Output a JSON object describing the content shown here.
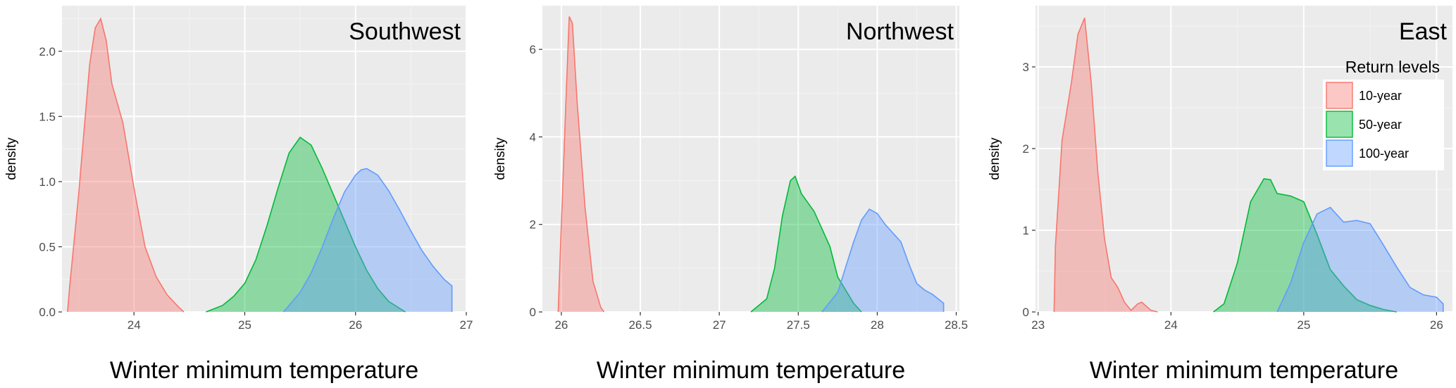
{
  "chart_data": [
    {
      "type": "area",
      "title": "Southwest",
      "xlabel": "Winter minimum temperature",
      "ylabel": "density",
      "xlim": [
        23.35,
        27.0
      ],
      "ylim": [
        0,
        2.35
      ],
      "xticks": [
        24,
        25,
        26,
        27
      ],
      "yticks": [
        0.0,
        0.5,
        1.0,
        1.5,
        2.0
      ],
      "ytick_labels": [
        "0.0",
        "0.5",
        "1.0",
        "1.5",
        "2.0"
      ],
      "grid": true,
      "series": [
        {
          "name": "10-year",
          "color": "#f8766d",
          "x": [
            23.4,
            23.42,
            23.5,
            23.6,
            23.65,
            23.7,
            23.75,
            23.8,
            23.9,
            24.0,
            24.1,
            24.2,
            24.3,
            24.4,
            24.45
          ],
          "y": [
            0.0,
            0.2,
            0.9,
            1.9,
            2.18,
            2.25,
            2.08,
            1.75,
            1.45,
            0.95,
            0.5,
            0.27,
            0.13,
            0.04,
            0.0
          ]
        },
        {
          "name": "50-year",
          "color": "#00ba38",
          "x": [
            24.65,
            24.8,
            24.9,
            25.0,
            25.1,
            25.2,
            25.3,
            25.4,
            25.5,
            25.6,
            25.7,
            25.8,
            25.9,
            26.0,
            26.1,
            26.2,
            26.3,
            26.45
          ],
          "y": [
            0.0,
            0.05,
            0.12,
            0.22,
            0.4,
            0.66,
            0.95,
            1.22,
            1.34,
            1.28,
            1.1,
            0.9,
            0.7,
            0.5,
            0.32,
            0.18,
            0.08,
            0.0
          ]
        },
        {
          "name": "100-year",
          "color": "#619cff",
          "x": [
            25.35,
            25.5,
            25.6,
            25.7,
            25.8,
            25.9,
            26.0,
            26.05,
            26.1,
            26.2,
            26.3,
            26.4,
            26.5,
            26.6,
            26.7,
            26.8,
            26.87,
            26.87
          ],
          "y": [
            0.0,
            0.15,
            0.3,
            0.5,
            0.72,
            0.92,
            1.05,
            1.09,
            1.1,
            1.05,
            0.93,
            0.78,
            0.62,
            0.47,
            0.35,
            0.25,
            0.2,
            0.0
          ]
        }
      ]
    },
    {
      "type": "area",
      "title": "Northwest",
      "xlabel": "Winter minimum temperature",
      "ylabel": "density",
      "xlim": [
        25.88,
        28.52
      ],
      "ylim": [
        0,
        7.0
      ],
      "xticks": [
        26.0,
        26.5,
        27.0,
        27.5,
        28.0,
        28.5
      ],
      "yticks": [
        0,
        2,
        4,
        6
      ],
      "ytick_labels": [
        "0",
        "2",
        "4",
        "6"
      ],
      "grid": true,
      "series": [
        {
          "name": "10-year",
          "color": "#f8766d",
          "x": [
            25.98,
            25.985,
            26.0,
            26.03,
            26.05,
            26.07,
            26.1,
            26.15,
            26.2,
            26.25,
            26.27
          ],
          "y": [
            0.0,
            0.5,
            2.0,
            4.9,
            6.75,
            6.6,
            4.8,
            2.4,
            0.7,
            0.1,
            0.0
          ]
        },
        {
          "name": "50-year",
          "color": "#00ba38",
          "x": [
            27.2,
            27.3,
            27.35,
            27.4,
            27.45,
            27.48,
            27.52,
            27.6,
            27.7,
            27.75,
            27.8,
            27.85,
            27.9
          ],
          "y": [
            0.0,
            0.3,
            1.0,
            2.2,
            3.0,
            3.1,
            2.7,
            2.3,
            1.5,
            0.8,
            0.5,
            0.2,
            0.0
          ]
        },
        {
          "name": "100-year",
          "color": "#619cff",
          "x": [
            27.65,
            27.75,
            27.85,
            27.9,
            27.95,
            28.0,
            28.05,
            28.1,
            28.15,
            28.2,
            28.25,
            28.3,
            28.35,
            28.42,
            28.42
          ],
          "y": [
            0.0,
            0.45,
            1.6,
            2.1,
            2.35,
            2.25,
            2.0,
            1.8,
            1.6,
            1.1,
            0.65,
            0.5,
            0.4,
            0.2,
            0.0
          ]
        }
      ]
    },
    {
      "type": "area",
      "title": "East",
      "xlabel": "Winter minimum temperature",
      "ylabel": "density",
      "xlim": [
        22.98,
        26.12
      ],
      "ylim": [
        0,
        3.75
      ],
      "xticks": [
        23,
        24,
        25,
        26
      ],
      "yticks": [
        0,
        1,
        2,
        3
      ],
      "ytick_labels": [
        "0",
        "1",
        "2",
        "3"
      ],
      "grid": true,
      "legend": {
        "title": "Return levels",
        "position": "top-right",
        "entries": [
          "10-year",
          "50-year",
          "100-year"
        ]
      },
      "series": [
        {
          "name": "10-year",
          "color": "#f8766d",
          "x": [
            23.12,
            23.13,
            23.18,
            23.25,
            23.3,
            23.35,
            23.4,
            23.45,
            23.5,
            23.55,
            23.6,
            23.65,
            23.7,
            23.75,
            23.78,
            23.85,
            23.9
          ],
          "y": [
            0.0,
            0.8,
            2.1,
            2.8,
            3.4,
            3.6,
            2.8,
            1.7,
            0.9,
            0.42,
            0.3,
            0.12,
            0.02,
            0.1,
            0.12,
            0.02,
            0.0
          ]
        },
        {
          "name": "50-year",
          "color": "#00ba38",
          "x": [
            24.32,
            24.4,
            24.5,
            24.6,
            24.7,
            24.75,
            24.8,
            24.9,
            25.0,
            25.1,
            25.2,
            25.3,
            25.4,
            25.5,
            25.6,
            25.7
          ],
          "y": [
            0.0,
            0.1,
            0.6,
            1.35,
            1.63,
            1.62,
            1.45,
            1.42,
            1.35,
            0.95,
            0.52,
            0.32,
            0.15,
            0.08,
            0.03,
            0.0
          ]
        },
        {
          "name": "100-year",
          "color": "#619cff",
          "x": [
            24.8,
            24.9,
            25.0,
            25.1,
            25.2,
            25.3,
            25.4,
            25.5,
            25.6,
            25.7,
            25.8,
            25.9,
            26.0,
            26.05,
            26.05
          ],
          "y": [
            0.0,
            0.35,
            0.85,
            1.2,
            1.28,
            1.1,
            1.12,
            1.08,
            0.82,
            0.55,
            0.3,
            0.21,
            0.18,
            0.1,
            0.0
          ]
        }
      ]
    }
  ]
}
